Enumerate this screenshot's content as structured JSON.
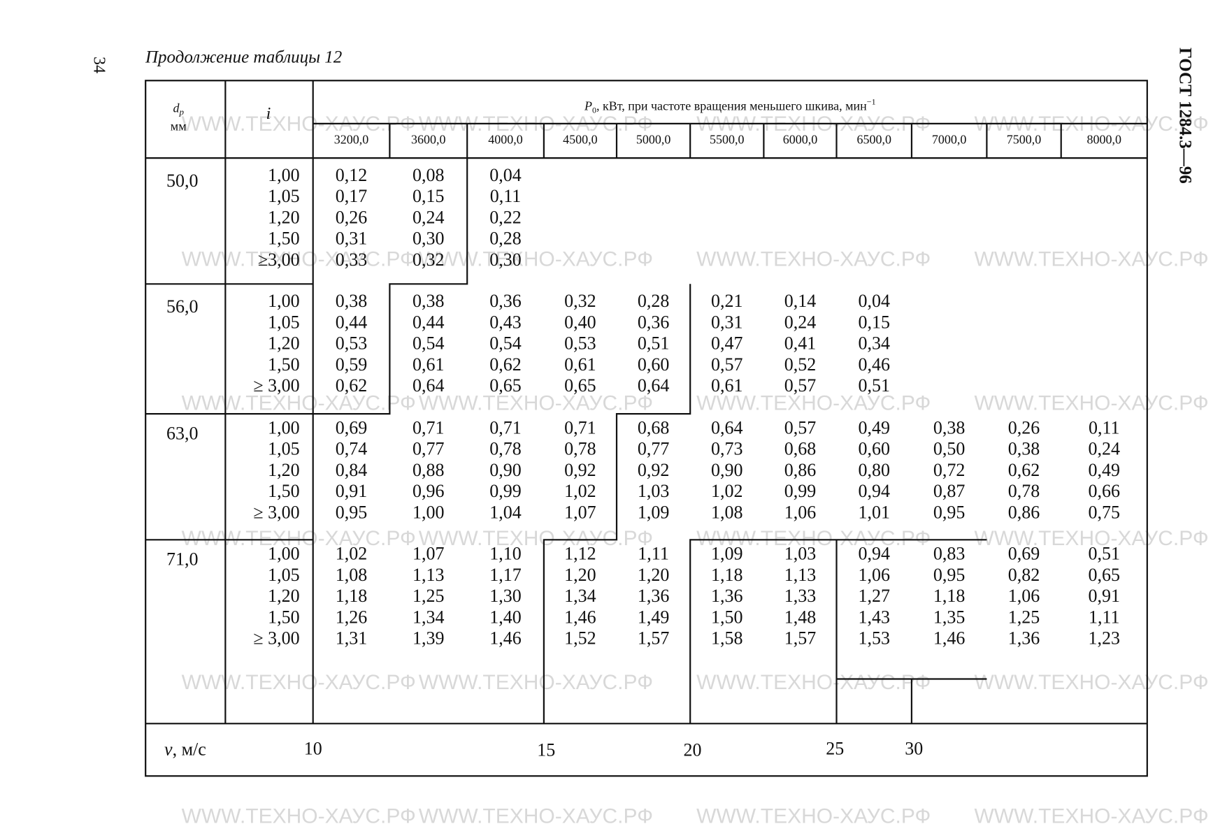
{
  "page_number": "34",
  "caption": "Продолжение таблицы 12",
  "side_title": "ГОСТ 1284.3—96",
  "watermark": "WWW.ТЕХНО-ХАУС.РФ",
  "header": {
    "d_symbol": "d",
    "d_subscript": "р",
    "d_unit": "мм",
    "i_symbol": "i",
    "p_symbol": "P",
    "p_subscript": "0",
    "p_text": ", кВт, при частоте вращения меньшего шкива, мин",
    "p_superscript": "−1",
    "columns": [
      "3200,0",
      "3600,0",
      "4000,0",
      "4500,0",
      "5000,0",
      "5500,0",
      "6000,0",
      "6500,0",
      "7000,0",
      "7500,0",
      "8000,0"
    ]
  },
  "groups": [
    {
      "d": "50,0",
      "rows": [
        {
          "i": "1,00",
          "values": [
            "0,12",
            "0,08",
            "0,04"
          ]
        },
        {
          "i": "1,05",
          "values": [
            "0,17",
            "0,15",
            "0,11"
          ]
        },
        {
          "i": "1,20",
          "values": [
            "0,26",
            "0,24",
            "0,22"
          ]
        },
        {
          "i": "1,50",
          "values": [
            "0,31",
            "0,30",
            "0,28"
          ]
        },
        {
          "i": "≥3,00",
          "values": [
            "0,33",
            "0,32",
            "0,30"
          ]
        }
      ]
    },
    {
      "d": "56,0",
      "rows": [
        {
          "i": "1,00",
          "values": [
            "0,38",
            "0,38",
            "0,36",
            "0,32",
            "0,28",
            "0,21",
            "0,14",
            "0,04"
          ]
        },
        {
          "i": "1,05",
          "values": [
            "0,44",
            "0,44",
            "0,43",
            "0,40",
            "0,36",
            "0,31",
            "0,24",
            "0,15"
          ]
        },
        {
          "i": "1,20",
          "values": [
            "0,53",
            "0,54",
            "0,54",
            "0,53",
            "0,51",
            "0,47",
            "0,41",
            "0,34"
          ]
        },
        {
          "i": "1,50",
          "values": [
            "0,59",
            "0,61",
            "0,62",
            "0,61",
            "0,60",
            "0,57",
            "0,52",
            "0,46"
          ]
        },
        {
          "i": "≥ 3,00",
          "values": [
            "0,62",
            "0,64",
            "0,65",
            "0,65",
            "0,64",
            "0,61",
            "0,57",
            "0,51"
          ]
        }
      ]
    },
    {
      "d": "63,0",
      "rows": [
        {
          "i": "1,00",
          "values": [
            "0,69",
            "0,71",
            "0,71",
            "0,71",
            "0,68",
            "0,64",
            "0,57",
            "0,49",
            "0,38",
            "0,26",
            "0,11"
          ]
        },
        {
          "i": "1,05",
          "values": [
            "0,74",
            "0,77",
            "0,78",
            "0,78",
            "0,77",
            "0,73",
            "0,68",
            "0,60",
            "0,50",
            "0,38",
            "0,24"
          ]
        },
        {
          "i": "1,20",
          "values": [
            "0,84",
            "0,88",
            "0,90",
            "0,92",
            "0,92",
            "0,90",
            "0,86",
            "0,80",
            "0,72",
            "0,62",
            "0,49"
          ]
        },
        {
          "i": "1,50",
          "values": [
            "0,91",
            "0,96",
            "0,99",
            "1,02",
            "1,03",
            "1,02",
            "0,99",
            "0,94",
            "0,87",
            "0,78",
            "0,66"
          ]
        },
        {
          "i": "≥ 3,00",
          "values": [
            "0,95",
            "1,00",
            "1,04",
            "1,07",
            "1,09",
            "1,08",
            "1,06",
            "1,01",
            "0,95",
            "0,86",
            "0,75"
          ]
        }
      ]
    },
    {
      "d": "71,0",
      "rows": [
        {
          "i": "1,00",
          "values": [
            "1,02",
            "1,07",
            "1,10",
            "1,12",
            "1,11",
            "1,09",
            "1,03",
            "0,94",
            "0,83",
            "0,69",
            "0,51"
          ]
        },
        {
          "i": "1,05",
          "values": [
            "1,08",
            "1,13",
            "1,17",
            "1,20",
            "1,20",
            "1,18",
            "1,13",
            "1,06",
            "0,95",
            "0,82",
            "0,65"
          ]
        },
        {
          "i": "1,20",
          "values": [
            "1,18",
            "1,25",
            "1,30",
            "1,34",
            "1,36",
            "1,36",
            "1,33",
            "1,27",
            "1,18",
            "1,06",
            "0,91"
          ]
        },
        {
          "i": "1,50",
          "values": [
            "1,26",
            "1,34",
            "1,40",
            "1,46",
            "1,49",
            "1,50",
            "1,48",
            "1,43",
            "1,35",
            "1,25",
            "1,11"
          ]
        },
        {
          "i": "≥ 3,00",
          "values": [
            "1,31",
            "1,39",
            "1,46",
            "1,52",
            "1,57",
            "1,58",
            "1,57",
            "1,53",
            "1,46",
            "1,36",
            "1,23"
          ]
        }
      ]
    }
  ],
  "footer": {
    "v_symbol": "v",
    "v_unit": "м/с",
    "speeds": [
      "10",
      "15",
      "20",
      "25",
      "30"
    ]
  }
}
